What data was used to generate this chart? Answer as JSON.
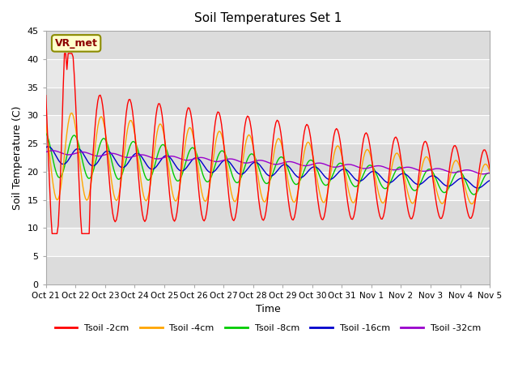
{
  "title": "Soil Temperatures Set 1",
  "xlabel": "Time",
  "ylabel": "Soil Temperature (C)",
  "ylim": [
    0,
    45
  ],
  "yticks": [
    0,
    5,
    10,
    15,
    20,
    25,
    30,
    35,
    40,
    45
  ],
  "annotation_text": "VR_met",
  "annotation_color": "#8B0000",
  "annotation_bg": "#FFFFCC",
  "annotation_border": "#8B8B00",
  "series_colors": {
    "Tsoil -2cm": "#FF0000",
    "Tsoil -4cm": "#FFA500",
    "Tsoil -8cm": "#00CC00",
    "Tsoil -16cm": "#0000CC",
    "Tsoil -32cm": "#9900CC"
  },
  "x_tick_labels": [
    "Oct 21",
    "Oct 22",
    "Oct 23",
    "Oct 24",
    "Oct 25",
    "Oct 26",
    "Oct 27",
    "Oct 28",
    "Oct 29",
    "Oct 30",
    "Oct 31",
    "Nov 1",
    "Nov 2",
    "Nov 3",
    "Nov 4",
    "Nov 5"
  ],
  "background_plot": "#E8E8E8",
  "background_bands": "#DCDCDC",
  "grid_color": "#FFFFFF"
}
